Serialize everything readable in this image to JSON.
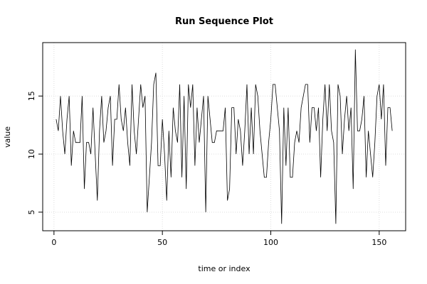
{
  "chart_data": {
    "type": "line",
    "title": "Run Sequence Plot",
    "xlabel": "time or index",
    "ylabel": "value",
    "x": [
      1,
      2,
      3,
      4,
      5,
      6,
      7,
      8,
      9,
      10,
      11,
      12,
      13,
      14,
      15,
      16,
      17,
      18,
      19,
      20,
      21,
      22,
      23,
      24,
      25,
      26,
      27,
      28,
      29,
      30,
      31,
      32,
      33,
      34,
      35,
      36,
      37,
      38,
      39,
      40,
      41,
      42,
      43,
      44,
      45,
      46,
      47,
      48,
      49,
      50,
      51,
      52,
      53,
      54,
      55,
      56,
      57,
      58,
      59,
      60,
      61,
      62,
      63,
      64,
      65,
      66,
      67,
      68,
      69,
      70,
      71,
      72,
      73,
      74,
      75,
      76,
      77,
      78,
      79,
      80,
      81,
      82,
      83,
      84,
      85,
      86,
      87,
      88,
      89,
      90,
      91,
      92,
      93,
      94,
      95,
      96,
      97,
      98,
      99,
      100,
      101,
      102,
      103,
      104,
      105,
      106,
      107,
      108,
      109,
      110,
      111,
      112,
      113,
      114,
      115,
      116,
      117,
      118,
      119,
      120,
      121,
      122,
      123,
      124,
      125,
      126,
      127,
      128,
      129,
      130,
      131,
      132,
      133,
      134,
      135,
      136,
      137,
      138,
      139,
      140,
      141,
      142,
      143,
      144,
      145,
      146,
      147,
      148,
      149,
      150,
      151,
      152,
      153,
      154,
      155,
      156
    ],
    "values": [
      13,
      12,
      15,
      12,
      10,
      13,
      15,
      9,
      12,
      11,
      11,
      11,
      15,
      7,
      11,
      11,
      10,
      14,
      10,
      6,
      12,
      15,
      11,
      12,
      14,
      15,
      9,
      13,
      13,
      16,
      13,
      12,
      14,
      11,
      9,
      16,
      12,
      10,
      13,
      16,
      14,
      15,
      5,
      8,
      11,
      16,
      17,
      9,
      9,
      13,
      10,
      6,
      12,
      8,
      14,
      12,
      11,
      16,
      8,
      15,
      7,
      16,
      14,
      16,
      9,
      14,
      11,
      13,
      15,
      5,
      15,
      13,
      11,
      11,
      12,
      12,
      12,
      12,
      14,
      6,
      7,
      14,
      14,
      10,
      13,
      12,
      9,
      12,
      16,
      10,
      14,
      10,
      16,
      15,
      12,
      10,
      8,
      8,
      11,
      13,
      16,
      16,
      14,
      12,
      4,
      14,
      9,
      14,
      8,
      8,
      11,
      12,
      11,
      14,
      15,
      16,
      16,
      11,
      14,
      14,
      12,
      14,
      8,
      13,
      16,
      12,
      16,
      12,
      11,
      4,
      16,
      15,
      10,
      13,
      15,
      12,
      14,
      7,
      19,
      12,
      12,
      13,
      15,
      8,
      12,
      10,
      8,
      11,
      15,
      16,
      13,
      16,
      9,
      14,
      14,
      12
    ],
    "color": "#000000",
    "xlim": [
      -5.2,
      162.2
    ],
    "xticks": [
      0,
      50,
      100,
      150
    ],
    "ylim": [
      3.4,
      19.6
    ],
    "yticks": [
      5,
      10,
      15
    ],
    "grid": true
  }
}
